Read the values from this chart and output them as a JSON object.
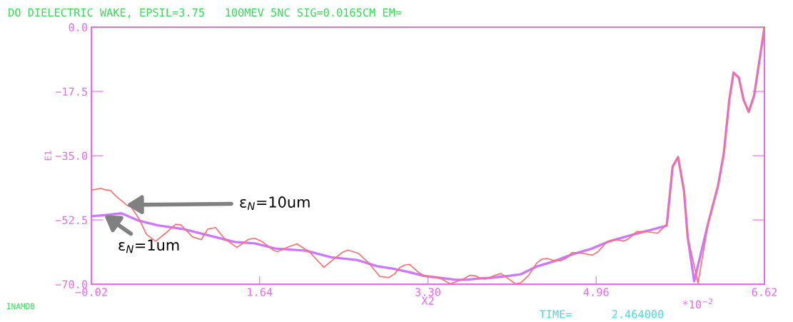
{
  "chart_data": {
    "type": "line",
    "title": "DO DIELECTRIC WAKE, EPSIL=3.75   100MEV 5NC SIG=0.0165CM EM=",
    "xlabel": "X2",
    "ylabel": "E1",
    "annotations": [
      "*10$^{−2}$",
      "INAMDB",
      "TIME=      2.464000"
    ],
    "xlim": [
      -0.02,
      6.62
    ],
    "ylim": [
      -70,
      0
    ],
    "xticks": [
      -0.02,
      1.64,
      {
        "value": 3.3,
        "label": "3.30"
      },
      4.96,
      6.62
    ],
    "yticks": [
      {
        "value": 0,
        "label": "0.0"
      },
      -17.5,
      {
        "value": -35,
        "label": "−35.0"
      },
      -52.5,
      {
        "value": -70,
        "label": "−70.0"
      }
    ],
    "grid": false,
    "legend": false,
    "series": [
      {
        "name": "ε$_{N}$=10um",
        "color": "#ff6f6f",
        "x": [
          -0.02,
          0.072,
          0.121,
          0.17,
          0.223,
          0.325,
          0.375,
          0.452,
          0.523,
          0.614,
          0.712,
          0.811,
          0.864,
          0.977,
          1.064,
          1.128,
          1.205,
          1.29,
          1.416,
          1.529,
          1.592,
          1.67,
          1.782,
          1.817,
          1.921,
          2.008,
          2.135,
          2.273,
          2.36,
          2.459,
          2.511,
          2.614,
          2.712,
          2.825,
          2.913,
          2.971,
          3.022,
          3.071,
          3.117,
          3.212,
          3.266,
          3.407,
          3.522,
          3.649,
          3.712,
          3.766,
          3.818,
          3.867,
          3.959,
          4.022,
          4.163,
          4.218,
          4.294,
          4.372,
          4.423,
          4.472,
          4.55,
          4.613,
          4.68,
          4.719,
          4.782,
          4.923,
          4.976,
          5.064,
          5.117,
          5.17,
          5.233,
          5.282,
          5.36,
          5.451,
          5.564,
          5.662,
          5.714,
          5.768,
          5.826,
          5.862,
          5.965,
          6.067,
          6.162,
          6.219,
          6.273,
          6.315,
          6.367,
          6.414,
          6.465,
          6.519,
          6.62
        ],
        "values": [
          -44.4,
          -43.9,
          -44.3,
          -44.5,
          -46.0,
          -48.4,
          -49.1,
          -52.3,
          -56.4,
          -58.3,
          -56.1,
          -53.7,
          -53.9,
          -57.1,
          -57.9,
          -55.0,
          -54.6,
          -57.5,
          -60.0,
          -57.8,
          -57.5,
          -58.5,
          -60.9,
          -61.1,
          -59.9,
          -59.0,
          -61.3,
          -65.4,
          -63.4,
          -61.3,
          -60.7,
          -61.6,
          -64.1,
          -67.9,
          -68.2,
          -67.2,
          -65.5,
          -64.8,
          -64.6,
          -66.9,
          -67.7,
          -68.2,
          -69.9,
          -68.6,
          -67.6,
          -67.7,
          -68.4,
          -68.6,
          -67.6,
          -67.1,
          -69.9,
          -69.6,
          -67.6,
          -64.3,
          -63.2,
          -63.0,
          -63.6,
          -63.6,
          -62.7,
          -61.4,
          -61.4,
          -62.1,
          -61.2,
          -58.5,
          -58.0,
          -57.9,
          -58.3,
          -57.6,
          -55.7,
          -55.7,
          -56.1,
          -53.6,
          -38.0,
          -35.4,
          -44.5,
          -57.0,
          -69.7,
          -53.1,
          -43.2,
          -34.4,
          -19.8,
          -12.4,
          -14.0,
          -19.8,
          -23.1,
          -18.5,
          0.0
        ]
      },
      {
        "name": "ε$_{N}$=1um",
        "color": "#cc77ff",
        "x": [
          -0.02,
          0.107,
          0.276,
          0.438,
          0.635,
          0.888,
          1.093,
          1.393,
          1.592,
          1.797,
          2.097,
          2.346,
          2.599,
          2.801,
          2.959,
          3.113,
          3.266,
          3.395,
          3.575,
          3.677,
          3.78,
          3.909,
          4.113,
          4.218,
          4.372,
          4.55,
          4.732,
          4.909,
          5.092,
          5.322,
          5.529,
          5.655,
          5.714,
          5.768,
          5.826,
          5.862,
          5.927,
          6.067,
          6.162,
          6.219,
          6.273,
          6.315,
          6.367,
          6.414,
          6.465,
          6.519,
          6.62
        ],
        "values": [
          -51.5,
          -51.2,
          -50.7,
          -52.6,
          -54.0,
          -55.0,
          -56.4,
          -58.5,
          -58.9,
          -60.3,
          -60.9,
          -62.7,
          -63.4,
          -65.1,
          -65.8,
          -66.7,
          -67.8,
          -68.2,
          -68.8,
          -68.8,
          -68.5,
          -68.3,
          -67.7,
          -67.3,
          -65.2,
          -63.7,
          -61.8,
          -60.4,
          -58.3,
          -56.5,
          -55.0,
          -54.1,
          -38.0,
          -35.4,
          -44.5,
          -57.0,
          -69.2,
          -53.1,
          -43.2,
          -34.4,
          -19.8,
          -12.4,
          -13.7,
          -19.8,
          -23.1,
          -18.5,
          0.0
        ]
      }
    ]
  }
}
